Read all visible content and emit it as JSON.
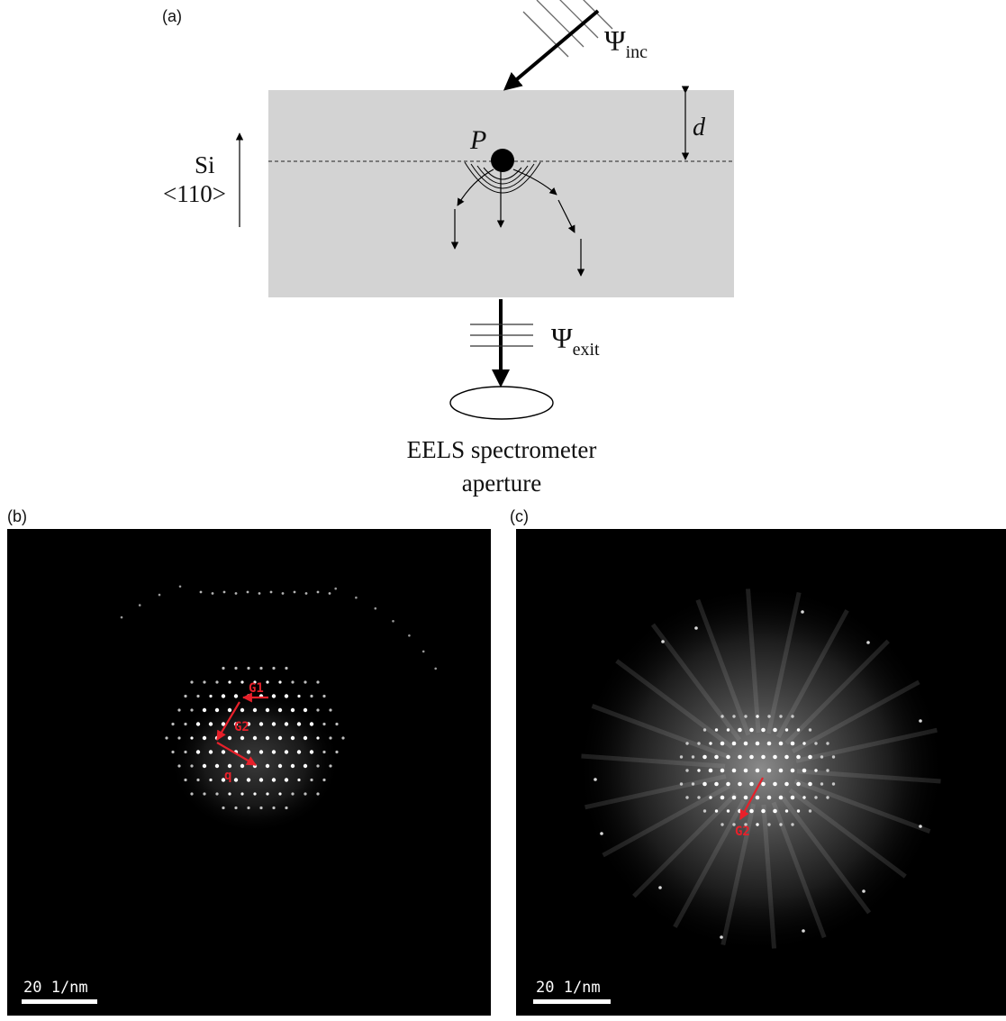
{
  "panels": {
    "a": {
      "label": "(a)"
    },
    "b": {
      "label": "(b)"
    },
    "c": {
      "label": "(c)"
    }
  },
  "schematic": {
    "psi_symbol": "Ψ",
    "psi_inc_sub": "inc",
    "psi_exit_sub": "exit",
    "thickness_label": "d",
    "point_label": "P",
    "crystal_label": "Si",
    "direction_label": "<110>",
    "aperture_line1": "EELS spectrometer",
    "aperture_line2": "aperture"
  },
  "pattern_b": {
    "vector_labels": [
      "G1",
      "G2",
      "q"
    ],
    "scale_bar": "20 1/nm"
  },
  "pattern_c": {
    "vector_labels": [
      "G2"
    ],
    "scale_bar": "20 1/nm"
  },
  "colors": {
    "slab": "#d3d3d3",
    "annotation": "#e8202a",
    "background": "#000000"
  }
}
